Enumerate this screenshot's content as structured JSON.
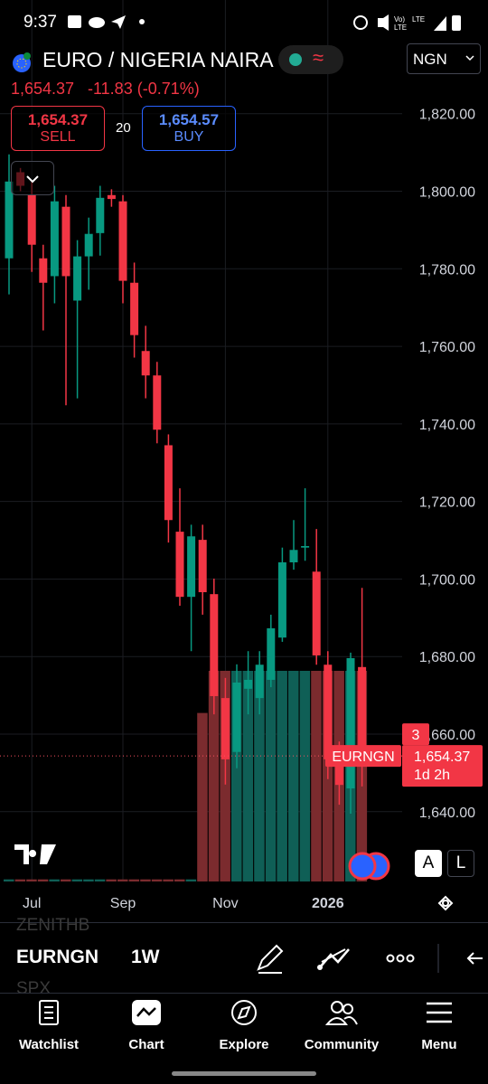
{
  "status_bar": {
    "time": "9:37"
  },
  "header": {
    "symbol": "EURO / NIGERIA NAIRA",
    "currency": "NGN",
    "price": "1,654.37",
    "change": "-11.83 (-0.71%)"
  },
  "trade": {
    "sell_price": "1,654.37",
    "sell_label": "SELL",
    "spread": "20",
    "buy_price": "1,654.57",
    "buy_label": "BUY"
  },
  "chart_data": {
    "type": "candlestick",
    "categories": [
      null,
      null,
      "Jul",
      null,
      null,
      null,
      null,
      null,
      null,
      null,
      "Sep",
      null,
      null,
      null,
      null,
      null,
      null,
      null,
      null,
      "Nov",
      null,
      null,
      null,
      null,
      null,
      null,
      null,
      null,
      "2026",
      null,
      null,
      null
    ],
    "open": [
      1782.7,
      1804.9,
      1799.0,
      1782.7,
      1778.1,
      1796.0,
      1771.8,
      1783.2,
      1789.2,
      1799.0,
      1797.4,
      1776.4,
      1758.8,
      1752.5,
      1734.5,
      1712.2,
      1695.4,
      1710.1,
      1696.1,
      1669.3,
      1655.4,
      1671.7,
      1669.3,
      1674.0,
      1684.9,
      1704.3,
      1708.1,
      1701.9,
      1677.9,
      1653.0,
      1646.0,
      1677.3
    ],
    "high": [
      1809.5,
      1806.0,
      1802.5,
      1786.2,
      1801.4,
      1799.0,
      1787.4,
      1793.2,
      1801.4,
      1800.5,
      1799.0,
      1781.6,
      1765.3,
      1756.0,
      1737.3,
      1723.4,
      1714.0,
      1714.0,
      1700.1,
      1674.5,
      1678.0,
      1681.4,
      1681.4,
      1690.8,
      1708.1,
      1715.2,
      1723.4,
      1712.9,
      1681.4,
      1658.1,
      1681.0,
      1697.7
    ],
    "low": [
      1773.4,
      1800.0,
      1779.2,
      1764.1,
      1771.1,
      1744.8,
      1746.6,
      1774.6,
      1783.4,
      1796.0,
      1771.1,
      1757.1,
      1746.6,
      1735.0,
      1709.4,
      1693.1,
      1681.4,
      1690.8,
      1665.1,
      1647.0,
      1651.2,
      1665.1,
      1665.1,
      1672.1,
      1683.8,
      1702.4,
      1704.7,
      1677.9,
      1648.4,
      1641.8,
      1639.5,
      1646.5
    ],
    "close": [
      1802.5,
      1801.4,
      1786.2,
      1776.4,
      1797.4,
      1778.1,
      1783.2,
      1789.0,
      1798.3,
      1798.0,
      1776.9,
      1762.9,
      1752.5,
      1738.5,
      1715.2,
      1695.4,
      1711.0,
      1696.6,
      1669.8,
      1653.5,
      1673.3,
      1674.0,
      1677.9,
      1687.3,
      1704.3,
      1707.5,
      1708.5,
      1680.3,
      1653.5,
      1646.9,
      1679.6,
      1654.37
    ],
    "volume": [
      1,
      1,
      1,
      1,
      1,
      1,
      1,
      1,
      1,
      1,
      1,
      1,
      1,
      1,
      1,
      1,
      1,
      80,
      100,
      100,
      100,
      100,
      100,
      100,
      100,
      100,
      100,
      100,
      100,
      100,
      100,
      100
    ],
    "up_color": "#089981",
    "down_color": "#f23645",
    "volume_up_color": "#0f5f56",
    "volume_down_color": "#7b2b2e",
    "ylim": [
      1622,
      1826
    ],
    "yticks": [
      {
        "value": 1820,
        "label": "1,820.00"
      },
      {
        "value": 1800,
        "label": "1,800.00"
      },
      {
        "value": 1780,
        "label": "1,780.00"
      },
      {
        "value": 1760,
        "label": "1,760.00"
      },
      {
        "value": 1740,
        "label": "1,740.00"
      },
      {
        "value": 1720,
        "label": "1,720.00"
      },
      {
        "value": 1700,
        "label": "1,700.00"
      },
      {
        "value": 1680,
        "label": "1,680.00"
      },
      {
        "value": 1660,
        "label": "1,660.00"
      },
      {
        "value": 1640,
        "label": "1,640.00"
      }
    ],
    "grid": true,
    "price_label": {
      "symbol": "EURNGN",
      "price": "1,654.37",
      "countdown": "1d 2h",
      "badge": "3"
    }
  },
  "chart_controls": {
    "auto": "A",
    "log": "L"
  },
  "toolbar": {
    "prev_symbol": "ZENITHB",
    "symbol": "EURNGN",
    "interval": "1W",
    "next_symbol": "SPX"
  },
  "nav": {
    "items": [
      {
        "label": "Watchlist"
      },
      {
        "label": "Chart"
      },
      {
        "label": "Explore"
      },
      {
        "label": "Community"
      },
      {
        "label": "Menu"
      }
    ]
  }
}
